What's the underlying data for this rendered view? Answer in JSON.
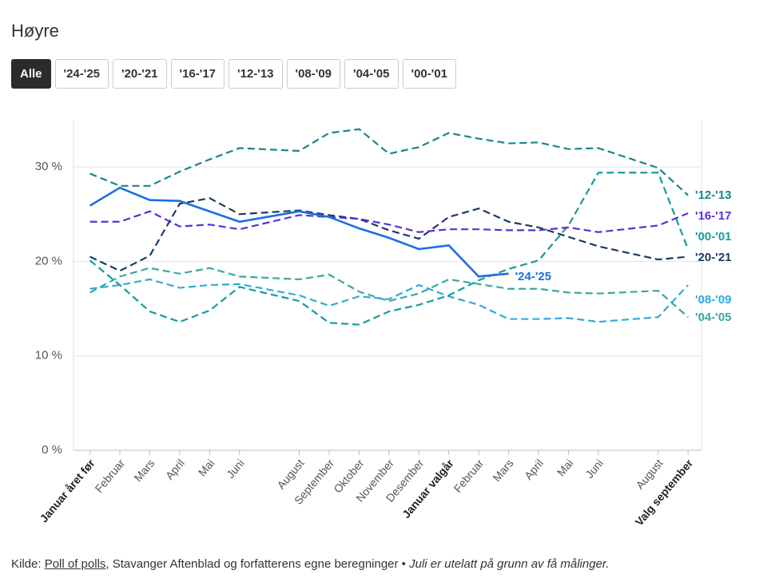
{
  "header": {
    "title": "Høyre"
  },
  "buttons": [
    "Alle",
    "'24-'25",
    "'20-'21",
    "'16-'17",
    "'12-'13",
    "'08-'09",
    "'04-'05",
    "'00-'01"
  ],
  "active_button": 0,
  "chart_data": {
    "type": "line",
    "x": [
      0,
      1,
      2,
      3,
      4,
      5,
      7,
      8,
      9,
      10,
      11,
      12,
      13,
      14,
      15,
      16,
      17,
      19,
      20
    ],
    "xlim": [
      -0.55,
      20.45
    ],
    "xticks": [
      {
        "value": 0,
        "label": "Januar året før"
      },
      {
        "value": 1,
        "label": "Februar"
      },
      {
        "value": 2,
        "label": "Mars"
      },
      {
        "value": 3,
        "label": "April"
      },
      {
        "value": 4,
        "label": "Mai"
      },
      {
        "value": 5,
        "label": "Juni"
      },
      {
        "value": 7,
        "label": "August"
      },
      {
        "value": 8,
        "label": "September"
      },
      {
        "value": 9,
        "label": "Oktober"
      },
      {
        "value": 10,
        "label": "November"
      },
      {
        "value": 11,
        "label": "Desember"
      },
      {
        "value": 12,
        "label": "Januar valgår"
      },
      {
        "value": 13,
        "label": "Februar"
      },
      {
        "value": 14,
        "label": "Mars"
      },
      {
        "value": 15,
        "label": "April"
      },
      {
        "value": 16,
        "label": "Mai"
      },
      {
        "value": 17,
        "label": "Juni"
      },
      {
        "value": 19,
        "label": "August"
      },
      {
        "value": 20,
        "label": "Valg september"
      }
    ],
    "ylim": [
      0,
      35
    ],
    "yticks": [
      {
        "value": 0,
        "label": "0 %"
      },
      {
        "value": 10,
        "label": "10 %"
      },
      {
        "value": 20,
        "label": "20 %"
      },
      {
        "value": 30,
        "label": "30 %"
      }
    ],
    "grid": true,
    "series": [
      {
        "name": "'24-'25",
        "color": "#1a6fe0",
        "dashed": false,
        "values": [
          25.9,
          27.8,
          26.5,
          26.4,
          25.3,
          24.2,
          25.3,
          24.7,
          23.5,
          22.5,
          21.3,
          21.7,
          18.4,
          18.7,
          null,
          null,
          null,
          null,
          null
        ]
      },
      {
        "name": "'12-'13",
        "color": "#17878a",
        "dashed": true,
        "values": [
          29.3,
          28.0,
          28.0,
          29.5,
          30.8,
          32.0,
          31.7,
          33.6,
          34.0,
          31.4,
          32.1,
          33.6,
          33.0,
          32.5,
          32.6,
          31.9,
          32.0,
          29.9,
          27.0
        ]
      },
      {
        "name": "'16-'17",
        "color": "#5b2fd6",
        "dashed": true,
        "values": [
          24.2,
          24.2,
          25.3,
          23.7,
          23.9,
          23.4,
          24.9,
          24.7,
          24.5,
          23.9,
          23.1,
          23.4,
          23.4,
          23.3,
          23.3,
          23.6,
          23.1,
          23.8,
          25.1
        ]
      },
      {
        "name": "'00-'01",
        "color": "#169c9c",
        "dashed": true,
        "values": [
          20.1,
          17.5,
          14.7,
          13.6,
          14.8,
          17.3,
          15.8,
          13.5,
          13.3,
          14.7,
          15.4,
          16.4,
          18.0,
          19.2,
          20.1,
          23.8,
          29.4,
          29.4,
          21.3
        ]
      },
      {
        "name": "'20-'21",
        "color": "#1b3a66",
        "dashed": true,
        "values": [
          20.5,
          19.0,
          20.6,
          26.1,
          26.7,
          25.0,
          25.4,
          24.9,
          24.5,
          23.3,
          22.4,
          24.7,
          25.6,
          24.2,
          23.6,
          22.6,
          21.6,
          20.2,
          20.5
        ]
      },
      {
        "name": "'08-'09",
        "color": "#2fa9e0",
        "dashed": true,
        "values": [
          17.1,
          17.5,
          18.1,
          17.2,
          17.5,
          17.6,
          16.4,
          15.3,
          16.3,
          16.0,
          17.5,
          16.3,
          15.4,
          13.9,
          13.9,
          14.0,
          13.6,
          14.1,
          17.5
        ]
      },
      {
        "name": "'04-'05",
        "color": "#3aa89f",
        "dashed": true,
        "values": [
          16.7,
          18.4,
          19.3,
          18.7,
          19.3,
          18.4,
          18.1,
          18.6,
          16.8,
          15.8,
          16.6,
          18.1,
          17.6,
          17.1,
          17.1,
          16.7,
          16.6,
          16.9,
          14.1
        ]
      }
    ]
  },
  "footer": {
    "prefix": "Kilde:",
    "link": "Poll of polls",
    "text": ", Stavanger Aftenblad og forfatterens egne beregninger •",
    "note": "Juli er utelatt på grunn av få målinger."
  }
}
